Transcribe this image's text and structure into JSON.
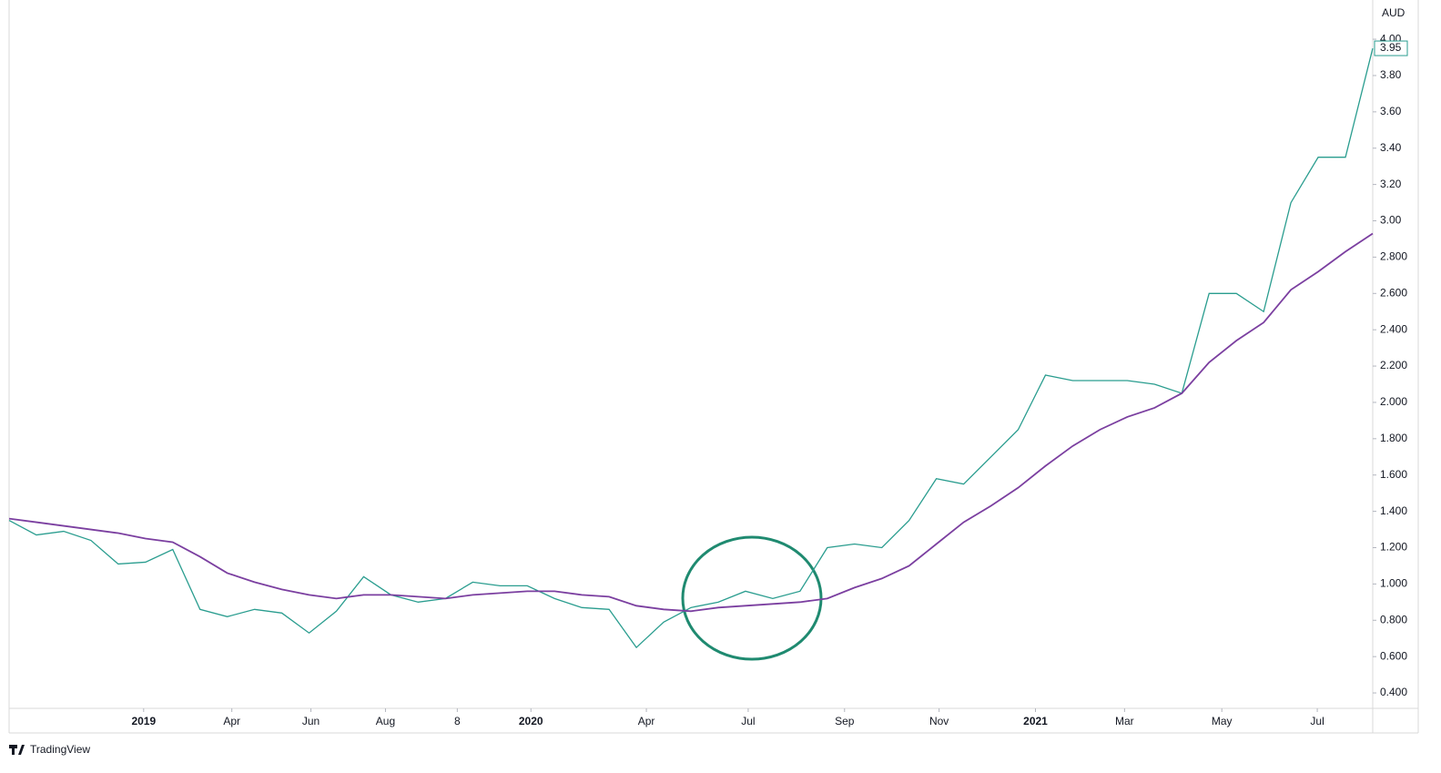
{
  "chart_data": {
    "type": "line",
    "currency": "AUD",
    "last_value": 3.95,
    "brand": "TradingView",
    "x": [
      0,
      3,
      6,
      9,
      12,
      15,
      18,
      21,
      24,
      27,
      30,
      33,
      36,
      39,
      42,
      45,
      48,
      51,
      54,
      57,
      60,
      63,
      66,
      69,
      72,
      75,
      78,
      81,
      84,
      87,
      90,
      93,
      96,
      99,
      102,
      105,
      108,
      111,
      114,
      117,
      120,
      123,
      126,
      129,
      132,
      135,
      138,
      141,
      144,
      147,
      150
    ],
    "series": [
      {
        "color": "#2a9d8f",
        "values": [
          1.35,
          1.27,
          1.29,
          1.24,
          1.11,
          1.12,
          1.19,
          0.86,
          0.82,
          0.86,
          0.84,
          0.73,
          0.85,
          1.04,
          0.94,
          0.9,
          0.92,
          1.01,
          0.99,
          0.99,
          0.92,
          0.87,
          0.86,
          0.65,
          0.79,
          0.87,
          0.9,
          0.96,
          0.92,
          0.96,
          1.2,
          1.22,
          1.2,
          1.35,
          1.58,
          1.55,
          1.7,
          1.85,
          2.15,
          2.12,
          2.12,
          2.12,
          2.1,
          2.05,
          2.6,
          2.6,
          2.5,
          3.1,
          3.35,
          3.35,
          3.95
        ]
      },
      {
        "color": "#7b3fa0",
        "values": [
          1.36,
          1.34,
          1.32,
          1.3,
          1.28,
          1.25,
          1.23,
          1.15,
          1.06,
          1.01,
          0.97,
          0.94,
          0.92,
          0.94,
          0.94,
          0.93,
          0.92,
          0.94,
          0.95,
          0.96,
          0.96,
          0.94,
          0.93,
          0.88,
          0.86,
          0.85,
          0.87,
          0.88,
          0.89,
          0.9,
          0.92,
          0.98,
          1.03,
          1.1,
          1.22,
          1.34,
          1.43,
          1.53,
          1.65,
          1.76,
          1.85,
          1.92,
          1.97,
          2.05,
          2.22,
          2.34,
          2.44,
          2.62,
          2.72,
          2.83,
          2.93
        ]
      }
    ],
    "xlim": [
      0,
      150
    ],
    "xticks": [
      {
        "value": 14.8,
        "label": "2019"
      },
      {
        "value": 24.5,
        "label": "Apr"
      },
      {
        "value": 33.2,
        "label": "Jun"
      },
      {
        "value": 41.4,
        "label": "Aug"
      },
      {
        "value": 49.3,
        "label": "8"
      },
      {
        "value": 57.4,
        "label": "2020"
      },
      {
        "value": 70.1,
        "label": "Apr"
      },
      {
        "value": 81.3,
        "label": "Jul"
      },
      {
        "value": 91.9,
        "label": "Sep"
      },
      {
        "value": 102.3,
        "label": "Nov"
      },
      {
        "value": 112.9,
        "label": "2021"
      },
      {
        "value": 122.7,
        "label": "Mar"
      },
      {
        "value": 133.4,
        "label": "May"
      },
      {
        "value": 143.9,
        "label": "Jul"
      }
    ],
    "ylim": [
      0.315,
      4.216
    ],
    "yticks": [
      {
        "value": 0.4,
        "label": "0.400"
      },
      {
        "value": 0.6,
        "label": "0.600"
      },
      {
        "value": 0.8,
        "label": "0.800"
      },
      {
        "value": 1.0,
        "label": "1.000"
      },
      {
        "value": 1.2,
        "label": "1.200"
      },
      {
        "value": 1.4,
        "label": "1.400"
      },
      {
        "value": 1.6,
        "label": "1.600"
      },
      {
        "value": 1.8,
        "label": "1.800"
      },
      {
        "value": 2.0,
        "label": "2.000"
      },
      {
        "value": 2.2,
        "label": "2.200"
      },
      {
        "value": 2.4,
        "label": "2.400"
      },
      {
        "value": 2.6,
        "label": "2.600"
      },
      {
        "value": 2.8,
        "label": "2.800"
      },
      {
        "value": 3.0,
        "label": "3.00"
      },
      {
        "value": 3.2,
        "label": "3.20"
      },
      {
        "value": 3.4,
        "label": "3.40"
      },
      {
        "value": 3.6,
        "label": "3.60"
      },
      {
        "value": 3.8,
        "label": "3.80"
      },
      {
        "value": 4.0,
        "label": "4.00"
      }
    ],
    "grid": false
  }
}
